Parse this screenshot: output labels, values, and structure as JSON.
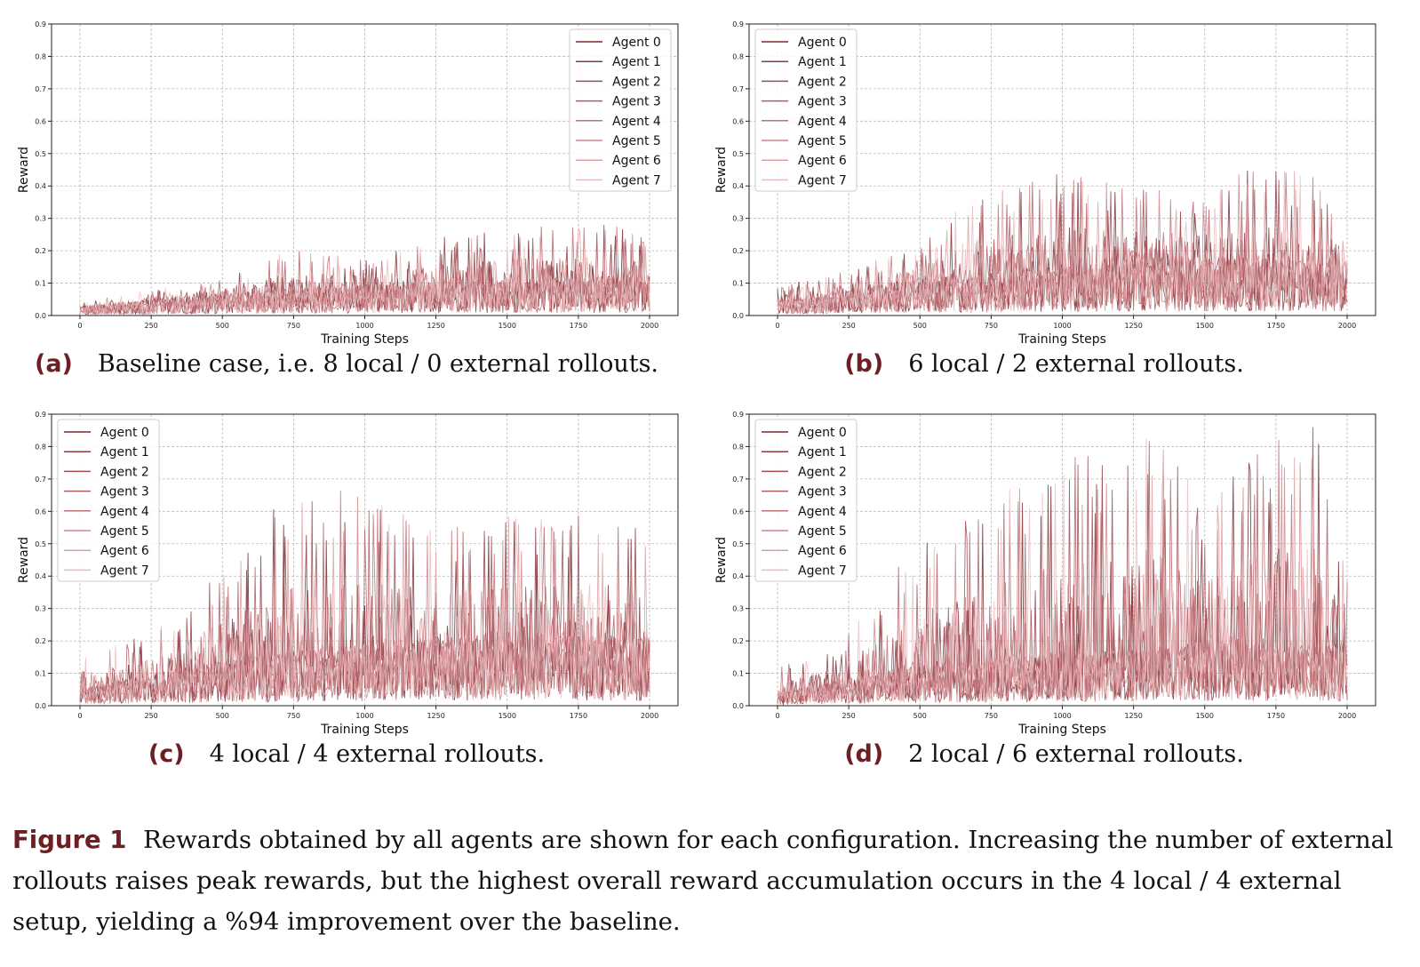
{
  "chart_data": [
    {
      "type": "line",
      "panel": "a",
      "xlabel": "Training Steps",
      "ylabel": "Reward",
      "xlim": [
        0,
        2000
      ],
      "ylim": [
        0,
        0.9
      ],
      "xticks": [
        "0",
        "250",
        "500",
        "750",
        "1000",
        "1250",
        "1500",
        "1750",
        "2000"
      ],
      "yticks": [
        "0.0",
        "0.1",
        "0.2",
        "0.3",
        "0.4",
        "0.5",
        "0.6",
        "0.7",
        "0.8",
        "0.9"
      ],
      "grid": true,
      "legend_position": "top-right",
      "series": [
        {
          "name": "Agent 0",
          "color": "#7a2a2f"
        },
        {
          "name": "Agent 1",
          "color": "#8c3a40"
        },
        {
          "name": "Agent 2",
          "color": "#9e4c52"
        },
        {
          "name": "Agent 3",
          "color": "#b05e64"
        },
        {
          "name": "Agent 4",
          "color": "#c07277"
        },
        {
          "name": "Agent 5",
          "color": "#cf878b"
        },
        {
          "name": "Agent 6",
          "color": "#dca0a3"
        },
        {
          "name": "Agent 7",
          "color": "#e9bcbe"
        }
      ],
      "peak_points": [
        [
          0,
          0.04
        ],
        [
          250,
          0.08
        ],
        [
          500,
          0.12
        ],
        [
          750,
          0.21
        ],
        [
          1000,
          0.18
        ],
        [
          1250,
          0.24
        ],
        [
          1500,
          0.27
        ],
        [
          1750,
          0.28
        ],
        [
          1900,
          0.29
        ],
        [
          2000,
          0.23
        ]
      ],
      "typical_level": [
        [
          0,
          0.02
        ],
        [
          500,
          0.05
        ],
        [
          1000,
          0.07
        ],
        [
          1500,
          0.08
        ],
        [
          2000,
          0.09
        ]
      ]
    },
    {
      "type": "line",
      "panel": "b",
      "xlabel": "Training Steps",
      "ylabel": "Reward",
      "xlim": [
        0,
        2000
      ],
      "ylim": [
        0,
        0.9
      ],
      "xticks": [
        "0",
        "250",
        "500",
        "750",
        "1000",
        "1250",
        "1500",
        "1750",
        "2000"
      ],
      "yticks": [
        "0.0",
        "0.1",
        "0.2",
        "0.3",
        "0.4",
        "0.5",
        "0.6",
        "0.7",
        "0.8",
        "0.9"
      ],
      "grid": true,
      "legend_position": "top-left",
      "series": [
        {
          "name": "Agent 0",
          "color": "#7a2a2f"
        },
        {
          "name": "Agent 1",
          "color": "#8c3a40"
        },
        {
          "name": "Agent 2",
          "color": "#9e4c52"
        },
        {
          "name": "Agent 3",
          "color": "#b05e64"
        },
        {
          "name": "Agent 4",
          "color": "#c07277"
        },
        {
          "name": "Agent 5",
          "color": "#cf878b"
        },
        {
          "name": "Agent 6",
          "color": "#dca0a3"
        },
        {
          "name": "Agent 7",
          "color": "#e9bcbe"
        }
      ],
      "peak_points": [
        [
          0,
          0.09
        ],
        [
          250,
          0.14
        ],
        [
          500,
          0.22
        ],
        [
          650,
          0.36
        ],
        [
          1000,
          0.45
        ],
        [
          1250,
          0.4
        ],
        [
          1500,
          0.38
        ],
        [
          1650,
          0.46
        ],
        [
          1900,
          0.44
        ],
        [
          2000,
          0.26
        ]
      ],
      "typical_level": [
        [
          0,
          0.03
        ],
        [
          500,
          0.08
        ],
        [
          1000,
          0.11
        ],
        [
          1500,
          0.13
        ],
        [
          2000,
          0.12
        ]
      ]
    },
    {
      "type": "line",
      "panel": "c",
      "xlabel": "Training Steps",
      "ylabel": "Reward",
      "xlim": [
        0,
        2000
      ],
      "ylim": [
        0,
        0.9
      ],
      "xticks": [
        "0",
        "250",
        "500",
        "750",
        "1000",
        "1250",
        "1500",
        "1750",
        "2000"
      ],
      "yticks": [
        "0.0",
        "0.1",
        "0.2",
        "0.3",
        "0.4",
        "0.5",
        "0.6",
        "0.7",
        "0.8",
        "0.9"
      ],
      "grid": true,
      "legend_position": "top-left",
      "series": [
        {
          "name": "Agent 0",
          "color": "#7a2a2f"
        },
        {
          "name": "Agent 1",
          "color": "#8c3a40"
        },
        {
          "name": "Agent 2",
          "color": "#9e4c52"
        },
        {
          "name": "Agent 3",
          "color": "#b05e64"
        },
        {
          "name": "Agent 4",
          "color": "#c07277"
        },
        {
          "name": "Agent 5",
          "color": "#cf878b"
        },
        {
          "name": "Agent 6",
          "color": "#dca0a3"
        },
        {
          "name": "Agent 7",
          "color": "#e9bcbe"
        }
      ],
      "peak_points": [
        [
          0,
          0.17
        ],
        [
          250,
          0.22
        ],
        [
          470,
          0.4
        ],
        [
          720,
          0.65
        ],
        [
          940,
          0.68
        ],
        [
          1250,
          0.57
        ],
        [
          1500,
          0.6
        ],
        [
          1750,
          0.6
        ],
        [
          1920,
          0.59
        ],
        [
          2000,
          0.5
        ]
      ],
      "typical_level": [
        [
          0,
          0.04
        ],
        [
          500,
          0.1
        ],
        [
          1000,
          0.14
        ],
        [
          1500,
          0.16
        ],
        [
          2000,
          0.15
        ]
      ]
    },
    {
      "type": "line",
      "panel": "d",
      "xlabel": "Training Steps",
      "ylabel": "Reward",
      "xlim": [
        0,
        2000
      ],
      "ylim": [
        0,
        0.9
      ],
      "xticks": [
        "0",
        "250",
        "500",
        "750",
        "1000",
        "1250",
        "1500",
        "1750",
        "2000"
      ],
      "yticks": [
        "0.0",
        "0.1",
        "0.2",
        "0.3",
        "0.4",
        "0.5",
        "0.6",
        "0.7",
        "0.8",
        "0.9"
      ],
      "grid": true,
      "legend_position": "top-left",
      "series": [
        {
          "name": "Agent 0",
          "color": "#7a2a2f"
        },
        {
          "name": "Agent 1",
          "color": "#8c3a40"
        },
        {
          "name": "Agent 2",
          "color": "#9e4c52"
        },
        {
          "name": "Agent 3",
          "color": "#b05e64"
        },
        {
          "name": "Agent 4",
          "color": "#c07277"
        },
        {
          "name": "Agent 5",
          "color": "#cf878b"
        },
        {
          "name": "Agent 6",
          "color": "#dca0a3"
        },
        {
          "name": "Agent 7",
          "color": "#e9bcbe"
        }
      ],
      "peak_points": [
        [
          0,
          0.12
        ],
        [
          200,
          0.17
        ],
        [
          450,
          0.46
        ],
        [
          1000,
          0.78
        ],
        [
          1150,
          0.78
        ],
        [
          1330,
          0.85
        ],
        [
          1500,
          0.62
        ],
        [
          1700,
          0.82
        ],
        [
          1880,
          0.88
        ],
        [
          2000,
          0.47
        ]
      ],
      "typical_level": [
        [
          0,
          0.03
        ],
        [
          500,
          0.09
        ],
        [
          1000,
          0.12
        ],
        [
          1500,
          0.14
        ],
        [
          2000,
          0.13
        ]
      ]
    }
  ],
  "captions": [
    {
      "tag": "(a)",
      "text": "Baseline case, i.e. 8 local / 0 external rollouts."
    },
    {
      "tag": "(b)",
      "text": "6 local / 2 external rollouts."
    },
    {
      "tag": "(c)",
      "text": "4 local / 4 external rollouts."
    },
    {
      "tag": "(d)",
      "text": "2 local / 6 external rollouts."
    }
  ],
  "figure_caption": {
    "tag": "Figure 1",
    "text": "Rewards obtained by all agents are shown for each configuration. Increasing the number of external rollouts raises peak rewards, but the highest overall reward accumulation occurs in the 4 local / 4 external setup, yielding a %94 improvement over the baseline."
  }
}
